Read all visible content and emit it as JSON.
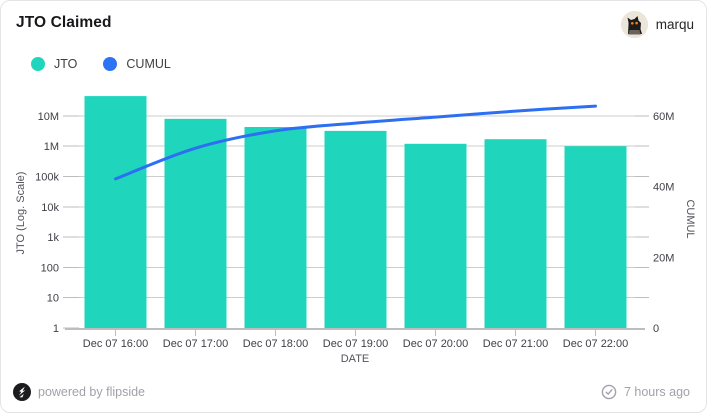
{
  "header": {
    "title": "JTO Claimed",
    "username": "marqu"
  },
  "legend": [
    {
      "label": "JTO",
      "color": "#1fd5bb"
    },
    {
      "label": "CUMUL",
      "color": "#2d74f5"
    }
  ],
  "chart_data": {
    "type": "bar",
    "title": "JTO Claimed",
    "categories": [
      "Dec 07 16:00",
      "Dec 07 17:00",
      "Dec 07 18:00",
      "Dec 07 19:00",
      "Dec 07 20:00",
      "Dec 07 21:00",
      "Dec 07 22:00"
    ],
    "series": [
      {
        "name": "JTO",
        "type": "bar",
        "axis": "left",
        "color": "#1fd5bb",
        "values": [
          45000000,
          8000000,
          4300000,
          3200000,
          1200000,
          1700000,
          1000000
        ]
      },
      {
        "name": "CUMUL",
        "type": "line",
        "axis": "right",
        "color": "#2d6ff3",
        "values": [
          42200000,
          50900000,
          55800000,
          58000000,
          59700000,
          61400000,
          62800000
        ]
      }
    ],
    "xlabel": "DATE",
    "left_axis": {
      "label": "JTO (Log. Scale)",
      "scale": "log",
      "min": 1,
      "max": 10000000,
      "tick_labels": [
        "1",
        "10",
        "100",
        "1k",
        "10k",
        "100k",
        "1M",
        "10M"
      ]
    },
    "right_axis": {
      "label": "CUMUL",
      "scale": "linear",
      "min": 0,
      "max": 60000000,
      "tick_labels": [
        "0",
        "20M",
        "40M",
        "60M"
      ],
      "tick_values": [
        0,
        20000000,
        40000000,
        60000000
      ]
    },
    "grid": true,
    "legend_position": "top-left"
  },
  "footer": {
    "powered_by": "powered by flipside",
    "updated": "7 hours ago"
  },
  "icons": {
    "avatar": "pixel-cat-avatar",
    "logo": "flipside-logo",
    "updated": "check-circle-icon"
  }
}
